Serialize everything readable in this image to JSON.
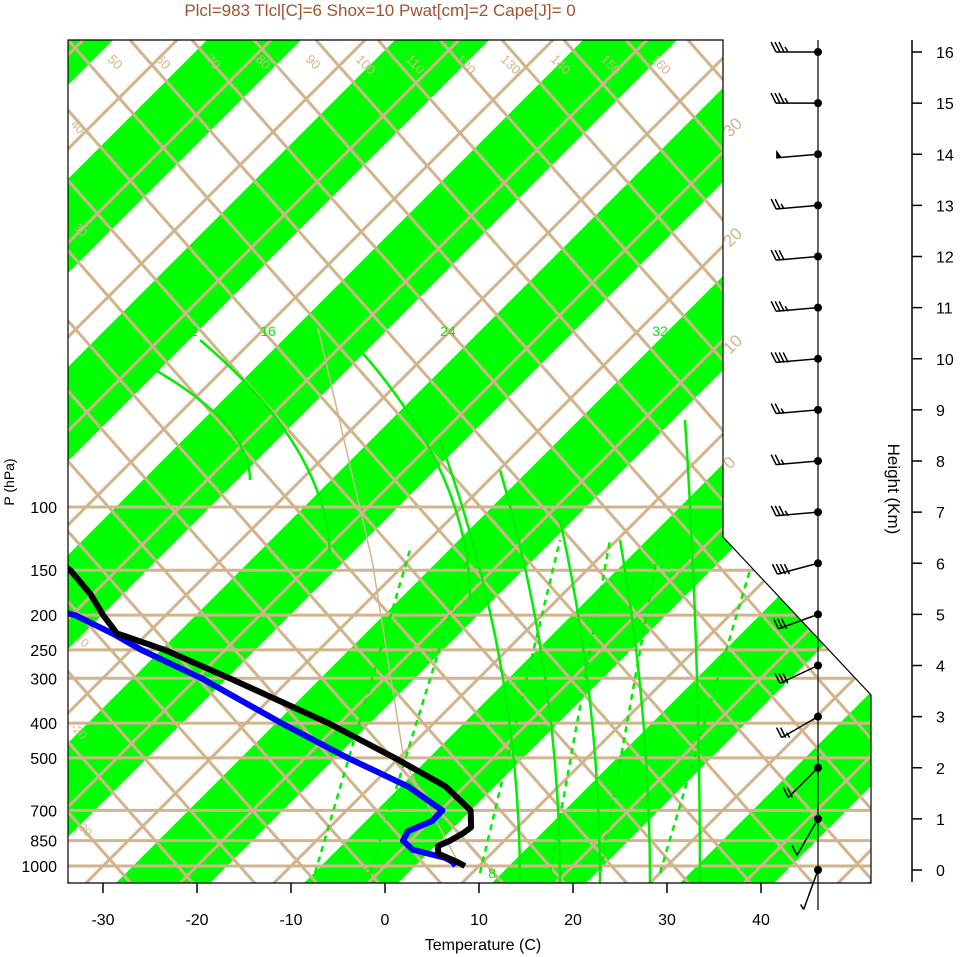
{
  "chart_data": {
    "type": "skew-t",
    "title": "Plcl=983 Tlcl[C]=6 Shox=10 Pwat[cm]=2 Cape[J]= 0",
    "xlabel": "Temperature (C)",
    "ylabel": "P (hPa)",
    "y2label": "Height (Km)",
    "x_ticks": [
      "-30",
      "-20",
      "-10",
      "0",
      "10",
      "20",
      "30",
      "40"
    ],
    "p_ticks": [
      "100",
      "150",
      "200",
      "250",
      "300",
      "400",
      "500",
      "700",
      "850",
      "1000"
    ],
    "height_ticks": [
      "0",
      "1",
      "2",
      "3",
      "4",
      "5",
      "6",
      "7",
      "8",
      "9",
      "10",
      "11",
      "12",
      "13",
      "14",
      "15",
      "16"
    ],
    "isotherm_labels": [
      "-30",
      "-20",
      "-10",
      "0",
      "10",
      "20",
      "30",
      "40",
      "50",
      "60",
      "70",
      "80",
      "90",
      "100",
      "110",
      "120",
      "130",
      "140",
      "150",
      "160"
    ],
    "mixing_ratio_labels": [
      "3",
      "8",
      "12",
      "16",
      "24",
      "32"
    ],
    "colors": {
      "title": "#a0522d",
      "band": "#00ff00",
      "grid": "#d2b48c",
      "temperature": "#000000",
      "dewpoint": "#0000ff",
      "moist_adiabat": "#00ee00"
    },
    "temperature": [
      {
        "p": 1000,
        "t": 8.5
      },
      {
        "p": 975,
        "t": 7.5
      },
      {
        "p": 925,
        "t": 5.0
      },
      {
        "p": 880,
        "t": 4.5
      },
      {
        "p": 850,
        "t": 5.5
      },
      {
        "p": 810,
        "t": 6.5
      },
      {
        "p": 780,
        "t": 7.0
      },
      {
        "p": 700,
        "t": 6.0
      },
      {
        "p": 600,
        "t": 2.0
      },
      {
        "p": 500,
        "t": -5.0
      },
      {
        "p": 400,
        "t": -14.0
      },
      {
        "p": 300,
        "t": -27.0
      },
      {
        "p": 250,
        "t": -35.5
      },
      {
        "p": 225,
        "t": -41.5
      },
      {
        "p": 200,
        "t": -44.0
      },
      {
        "p": 175,
        "t": -46.5
      },
      {
        "p": 150,
        "t": -50.0
      },
      {
        "p": 125,
        "t": -56.0
      },
      {
        "p": 100,
        "t": -63.0
      }
    ],
    "dewpoint": [
      {
        "p": 1000,
        "t": 7.5
      },
      {
        "p": 975,
        "t": 7.0
      },
      {
        "p": 950,
        "t": 6.0
      },
      {
        "p": 900,
        "t": 2.0
      },
      {
        "p": 850,
        "t": 0.5
      },
      {
        "p": 800,
        "t": 0.5
      },
      {
        "p": 750,
        "t": 2.5
      },
      {
        "p": 700,
        "t": 3.0
      },
      {
        "p": 600,
        "t": -2.0
      },
      {
        "p": 500,
        "t": -10.0
      },
      {
        "p": 400,
        "t": -19.0
      },
      {
        "p": 300,
        "t": -30.0
      },
      {
        "p": 250,
        "t": -38.0
      },
      {
        "p": 225,
        "t": -42.0
      },
      {
        "p": 200,
        "t": -47.0
      },
      {
        "p": 175,
        "t": -57.0
      },
      {
        "p": 150,
        "t": -63.0
      },
      {
        "p": 125,
        "t": -70.0
      },
      {
        "p": 100,
        "t": -78.0
      }
    ],
    "wind": [
      {
        "km": 16.0,
        "dir": 270,
        "spd": 35
      },
      {
        "km": 15.0,
        "dir": 270,
        "spd": 35
      },
      {
        "km": 14.0,
        "dir": 265,
        "spd": 50
      },
      {
        "km": 13.0,
        "dir": 265,
        "spd": 25
      },
      {
        "km": 12.0,
        "dir": 265,
        "spd": 30
      },
      {
        "km": 11.0,
        "dir": 265,
        "spd": 35
      },
      {
        "km": 10.0,
        "dir": 265,
        "spd": 40
      },
      {
        "km": 9.0,
        "dir": 265,
        "spd": 25
      },
      {
        "km": 8.0,
        "dir": 265,
        "spd": 25
      },
      {
        "km": 7.0,
        "dir": 265,
        "spd": 35
      },
      {
        "km": 6.0,
        "dir": 255,
        "spd": 40
      },
      {
        "km": 5.0,
        "dir": 250,
        "spd": 30
      },
      {
        "km": 4.0,
        "dir": 245,
        "spd": 30
      },
      {
        "km": 3.0,
        "dir": 240,
        "spd": 25
      },
      {
        "km": 2.0,
        "dir": 225,
        "spd": 20
      },
      {
        "km": 1.0,
        "dir": 210,
        "spd": 10
      },
      {
        "km": 0.0,
        "dir": 200,
        "spd": 5
      }
    ]
  }
}
